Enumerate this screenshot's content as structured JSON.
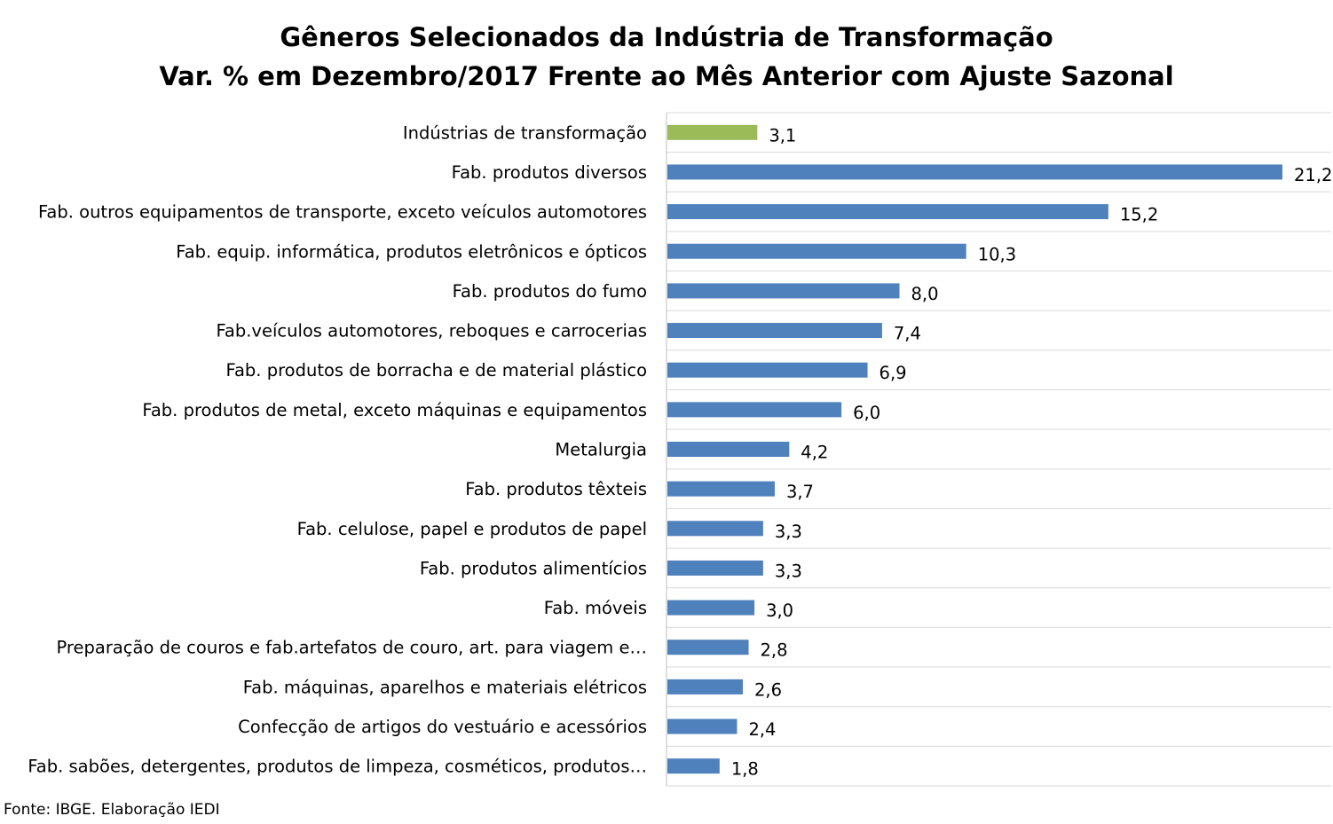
{
  "chart_data": {
    "type": "bar",
    "orientation": "horizontal",
    "title": "Gêneros Selecionados da Indústria de Transformação",
    "subtitle": "Var. % em Dezembro/2017 Frente ao Mês Anterior com Ajuste Sazonal",
    "xlabel": "",
    "ylabel": "",
    "xlim": [
      0,
      22
    ],
    "grid": "horizontal separators",
    "legend": "none",
    "categories": [
      "Indústrias de transformação",
      "Fab. produtos diversos",
      "Fab. outros equipamentos de transporte, exceto veículos automotores",
      "Fab. equip. informática, produtos eletrônicos e ópticos",
      "Fab. produtos do fumo",
      "Fab.veículos automotores, reboques e carrocerias",
      "Fab. produtos de borracha e de material plástico",
      "Fab. produtos de metal, exceto máquinas e equipamentos",
      "Metalurgia",
      "Fab. produtos têxteis",
      "Fab. celulose, papel e produtos de papel",
      "Fab. produtos alimentícios",
      "Fab. móveis",
      "Preparação de couros e fab.artefatos de couro, art. para viagem e…",
      "Fab. máquinas, aparelhos e materiais elétricos",
      "Confecção de artigos do vestuário e acessórios",
      "Fab. sabões, detergentes, produtos de limpeza, cosméticos, produtos…"
    ],
    "values": [
      3.1,
      21.2,
      15.2,
      10.3,
      8.0,
      7.4,
      6.9,
      6.0,
      4.2,
      3.7,
      3.3,
      3.3,
      3.0,
      2.8,
      2.6,
      2.4,
      1.8
    ],
    "value_labels": [
      "3,1",
      "21,2",
      "15,2",
      "10,3",
      "8,0",
      "7,4",
      "6,9",
      "6,0",
      "4,2",
      "3,7",
      "3,3",
      "3,3",
      "3,0",
      "2,8",
      "2,6",
      "2,4",
      "1,8"
    ],
    "highlight_index": 0,
    "colors": {
      "default_bar": "#4f81bd",
      "highlight_bar": "#9bbb59",
      "gridline": "#d9d9d9",
      "axis": "#bfbfbf"
    }
  },
  "source": "Fonte: IBGE. Elaboração IEDI"
}
